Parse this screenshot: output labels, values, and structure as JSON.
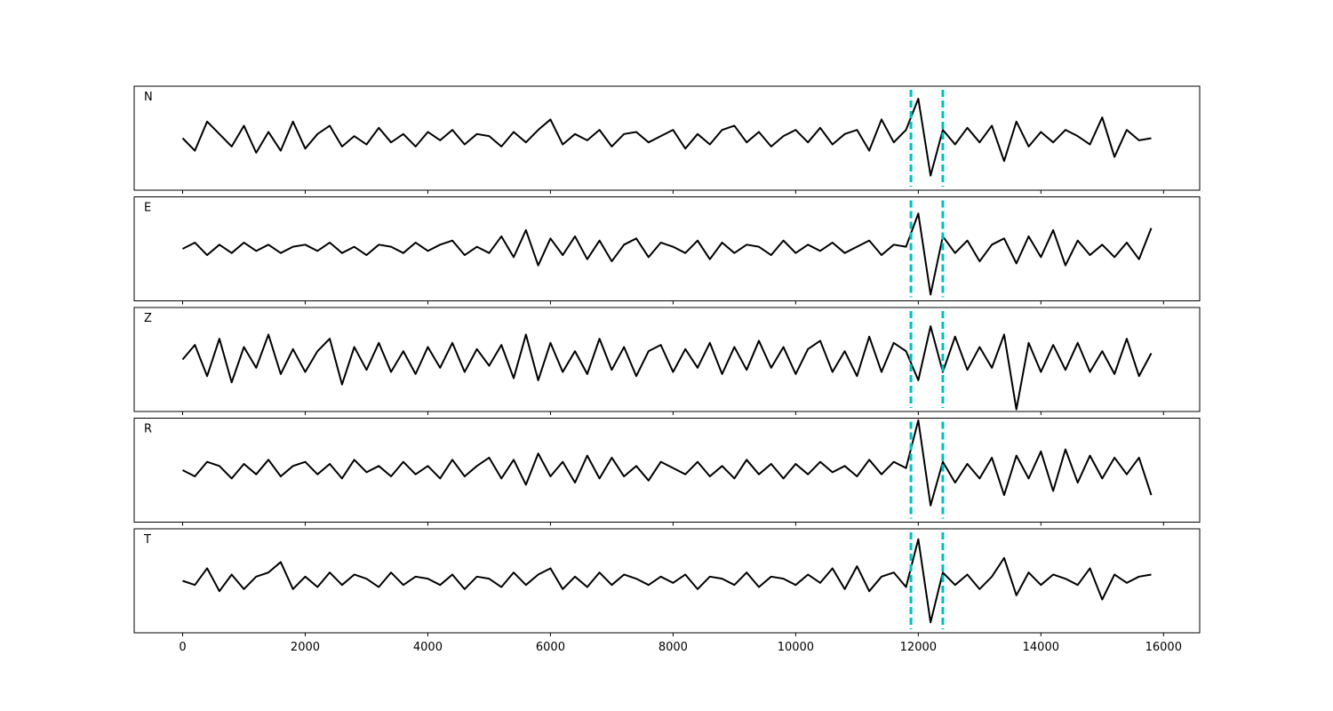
{
  "chart_data": {
    "type": "line",
    "x": [
      0,
      200,
      400,
      600,
      800,
      1000,
      1200,
      1400,
      1600,
      1800,
      2000,
      2200,
      2400,
      2600,
      2800,
      3000,
      3200,
      3400,
      3600,
      3800,
      4000,
      4200,
      4400,
      4600,
      4800,
      5000,
      5200,
      5400,
      5600,
      5800,
      6000,
      6200,
      6400,
      6600,
      6800,
      7000,
      7200,
      7400,
      7600,
      7800,
      8000,
      8200,
      8400,
      8600,
      8800,
      9000,
      9200,
      9400,
      9600,
      9800,
      10000,
      10200,
      10400,
      10600,
      10800,
      11000,
      11200,
      11400,
      11600,
      11800,
      12000,
      12200,
      12400,
      12600,
      12800,
      13000,
      13200,
      13400,
      13600,
      13800,
      14000,
      14200,
      14400,
      14600,
      14800,
      15000,
      15200,
      15400,
      15600,
      15800
    ],
    "xlim": [
      -790,
      16590
    ],
    "xticks": [
      0,
      2000,
      4000,
      6000,
      8000,
      10000,
      12000,
      14000,
      16000
    ],
    "ylim": [
      -1.25,
      1.25
    ],
    "line_color": "#000000",
    "vlines": [
      11880,
      12400
    ],
    "vline_color": "#00bfbf",
    "vline_style": "dashed",
    "series": [
      {
        "name": "N",
        "values": [
          0.0,
          -0.3,
          0.4,
          0.1,
          -0.2,
          0.3,
          -0.35,
          0.15,
          -0.3,
          0.4,
          -0.25,
          0.1,
          0.3,
          -0.2,
          0.05,
          -0.15,
          0.25,
          -0.1,
          0.1,
          -0.2,
          0.15,
          -0.05,
          0.2,
          -0.15,
          0.1,
          0.05,
          -0.2,
          0.15,
          -0.1,
          0.2,
          0.45,
          -0.15,
          0.1,
          -0.05,
          0.2,
          -0.2,
          0.1,
          0.15,
          -0.1,
          0.05,
          0.2,
          -0.25,
          0.1,
          -0.15,
          0.2,
          0.3,
          -0.1,
          0.15,
          -0.2,
          0.05,
          0.2,
          -0.1,
          0.25,
          -0.15,
          0.1,
          0.2,
          -0.3,
          0.45,
          -0.1,
          0.2,
          0.95,
          -0.9,
          0.2,
          -0.15,
          0.25,
          -0.1,
          0.3,
          -0.55,
          0.4,
          -0.2,
          0.15,
          -0.1,
          0.2,
          0.05,
          -0.15,
          0.5,
          -0.45,
          0.2,
          -0.05,
          0.0
        ]
      },
      {
        "name": "E",
        "values": [
          0.0,
          0.15,
          -0.15,
          0.1,
          -0.1,
          0.15,
          -0.05,
          0.1,
          -0.1,
          0.05,
          0.1,
          -0.05,
          0.15,
          -0.1,
          0.05,
          -0.15,
          0.1,
          0.05,
          -0.1,
          0.15,
          -0.05,
          0.1,
          0.2,
          -0.15,
          0.05,
          -0.1,
          0.3,
          -0.2,
          0.45,
          -0.4,
          0.25,
          -0.15,
          0.3,
          -0.25,
          0.2,
          -0.3,
          0.1,
          0.25,
          -0.2,
          0.15,
          0.05,
          -0.1,
          0.2,
          -0.25,
          0.15,
          -0.1,
          0.1,
          0.05,
          -0.15,
          0.2,
          -0.1,
          0.1,
          -0.05,
          0.15,
          -0.1,
          0.05,
          0.2,
          -0.15,
          0.1,
          0.05,
          0.85,
          -1.1,
          0.3,
          -0.1,
          0.2,
          -0.3,
          0.1,
          0.25,
          -0.35,
          0.3,
          -0.2,
          0.45,
          -0.4,
          0.2,
          -0.15,
          0.1,
          -0.2,
          0.15,
          -0.25,
          0.5
        ]
      },
      {
        "name": "Z",
        "values": [
          0.0,
          0.35,
          -0.4,
          0.5,
          -0.55,
          0.3,
          -0.2,
          0.6,
          -0.35,
          0.25,
          -0.3,
          0.2,
          0.5,
          -0.6,
          0.3,
          -0.25,
          0.4,
          -0.3,
          0.2,
          -0.35,
          0.3,
          -0.2,
          0.4,
          -0.3,
          0.25,
          -0.15,
          0.35,
          -0.45,
          0.6,
          -0.5,
          0.4,
          -0.3,
          0.2,
          -0.35,
          0.5,
          -0.25,
          0.3,
          -0.4,
          0.2,
          0.35,
          -0.3,
          0.25,
          -0.2,
          0.4,
          -0.35,
          0.3,
          -0.25,
          0.45,
          -0.2,
          0.3,
          -0.35,
          0.25,
          0.45,
          -0.3,
          0.2,
          -0.4,
          0.55,
          -0.3,
          0.4,
          0.2,
          -0.5,
          0.8,
          -0.3,
          0.55,
          -0.25,
          0.3,
          -0.2,
          0.6,
          -1.2,
          0.4,
          -0.3,
          0.35,
          -0.25,
          0.4,
          -0.3,
          0.2,
          -0.35,
          0.5,
          -0.4,
          0.15
        ]
      },
      {
        "name": "R",
        "values": [
          0.0,
          -0.15,
          0.2,
          0.1,
          -0.2,
          0.15,
          -0.1,
          0.25,
          -0.15,
          0.1,
          0.2,
          -0.1,
          0.15,
          -0.2,
          0.25,
          -0.05,
          0.1,
          -0.15,
          0.2,
          -0.1,
          0.1,
          -0.2,
          0.25,
          -0.15,
          0.1,
          0.3,
          -0.2,
          0.25,
          -0.35,
          0.4,
          -0.15,
          0.2,
          -0.3,
          0.35,
          -0.2,
          0.3,
          -0.15,
          0.1,
          -0.25,
          0.2,
          0.05,
          -0.1,
          0.2,
          -0.15,
          0.1,
          -0.2,
          0.25,
          -0.1,
          0.15,
          -0.2,
          0.15,
          -0.1,
          0.2,
          -0.05,
          0.1,
          -0.15,
          0.25,
          -0.1,
          0.2,
          0.05,
          1.2,
          -0.85,
          0.2,
          -0.3,
          0.15,
          -0.2,
          0.3,
          -0.6,
          0.35,
          -0.2,
          0.45,
          -0.5,
          0.5,
          -0.3,
          0.35,
          -0.2,
          0.3,
          -0.1,
          0.3,
          -0.6
        ]
      },
      {
        "name": "T",
        "values": [
          0.0,
          -0.1,
          0.3,
          -0.25,
          0.15,
          -0.2,
          0.1,
          0.2,
          0.45,
          -0.2,
          0.1,
          -0.15,
          0.2,
          -0.1,
          0.15,
          0.05,
          -0.15,
          0.2,
          -0.1,
          0.1,
          0.05,
          -0.1,
          0.15,
          -0.2,
          0.1,
          0.05,
          -0.15,
          0.2,
          -0.1,
          0.15,
          0.3,
          -0.2,
          0.1,
          -0.15,
          0.2,
          -0.1,
          0.15,
          0.05,
          -0.1,
          0.1,
          -0.05,
          0.15,
          -0.2,
          0.1,
          0.05,
          -0.1,
          0.2,
          -0.15,
          0.1,
          0.05,
          -0.1,
          0.15,
          -0.05,
          0.3,
          -0.2,
          0.35,
          -0.25,
          0.1,
          0.2,
          -0.15,
          1.0,
          -1.0,
          0.2,
          -0.1,
          0.15,
          -0.2,
          0.1,
          0.55,
          -0.35,
          0.2,
          -0.1,
          0.15,
          0.05,
          -0.1,
          0.3,
          -0.45,
          0.15,
          -0.05,
          0.1,
          0.15
        ]
      }
    ]
  }
}
